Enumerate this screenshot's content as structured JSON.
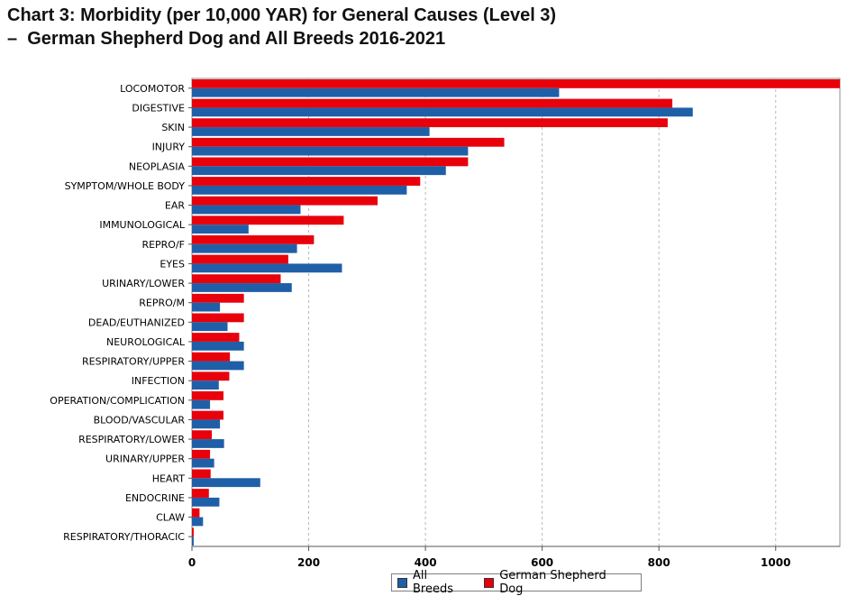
{
  "title_line1": "Chart 3: Morbidity (per 10,000 YAR) for General Causes (Level 3)",
  "title_line2": "–  German Shepherd Dog and All Breeds 2016-2021",
  "chart_data": {
    "type": "bar",
    "orientation": "horizontal",
    "categories": [
      "LOCOMOTOR",
      "DIGESTIVE",
      "SKIN",
      "INJURY",
      "NEOPLASIA",
      "SYMPTOM/WHOLE BODY",
      "EAR",
      "IMMUNOLOGICAL",
      "REPRO/F",
      "EYES",
      "URINARY/LOWER",
      "REPRO/M",
      "DEAD/EUTHANIZED",
      "NEUROLOGICAL",
      "RESPIRATORY/UPPER",
      "INFECTION",
      "OPERATION/COMPLICATION",
      "BLOOD/VASCULAR",
      "RESPIRATORY/LOWER",
      "URINARY/UPPER",
      "HEART",
      "ENDOCRINE",
      "CLAW",
      "RESPIRATORY/THORACIC"
    ],
    "series": [
      {
        "name": "German Shepherd Dog",
        "color": "#e8000b",
        "values": [
          1110,
          823,
          815,
          535,
          473,
          391,
          318,
          260,
          209,
          165,
          152,
          89,
          89,
          81,
          65,
          64,
          54,
          54,
          34,
          31,
          32,
          29,
          13,
          3
        ]
      },
      {
        "name": "All Breeds",
        "color": "#1f5fa8",
        "values": [
          629,
          858,
          407,
          473,
          435,
          368,
          186,
          97,
          180,
          257,
          171,
          48,
          61,
          89,
          89,
          46,
          31,
          48,
          55,
          38,
          117,
          47,
          19,
          3
        ]
      }
    ],
    "xticks": [
      0,
      200,
      400,
      600,
      800,
      1000
    ],
    "xlim": [
      0,
      1110
    ],
    "grid": "vertical dashed",
    "legend": "bottom-center",
    "xlabel": "",
    "ylabel": ""
  },
  "legend": [
    {
      "label": "All Breeds",
      "color": "#1f5fa8"
    },
    {
      "label": "German Shepherd Dog",
      "color": "#e8000b"
    }
  ]
}
